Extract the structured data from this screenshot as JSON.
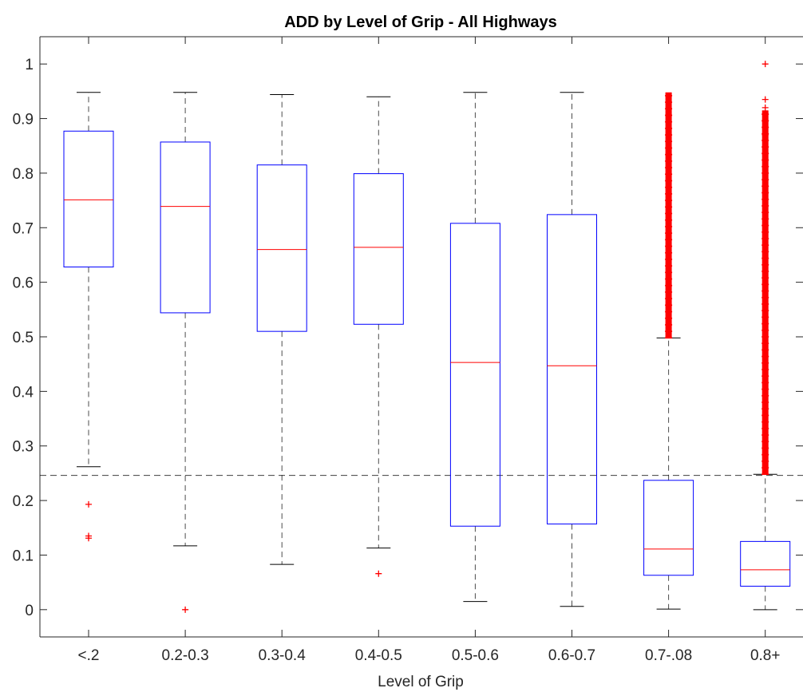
{
  "chart_data": {
    "type": "box",
    "title": "ADD by Level of Grip - All Highways",
    "xlabel": "Level of Grip",
    "ylabel": "",
    "ylim": [
      -0.05,
      1.05
    ],
    "yticks": [
      "0",
      "0.1",
      "0.2",
      "0.3",
      "0.4",
      "0.5",
      "0.6",
      "0.7",
      "0.8",
      "0.9",
      "1"
    ],
    "categories": [
      "<.2",
      "0.2-0.3",
      "0.3-0.4",
      "0.4-0.5",
      "0.5-0.6",
      "0.6-0.7",
      "0.7-.08",
      "0.8+"
    ],
    "boxes": [
      {
        "lower_whisker": 0.262,
        "q1": 0.628,
        "median": 0.751,
        "q3": 0.877,
        "upper_whisker": 0.948,
        "outliers": [
          0.193,
          0.135,
          0.131
        ]
      },
      {
        "lower_whisker": 0.117,
        "q1": 0.544,
        "median": 0.739,
        "q3": 0.857,
        "upper_whisker": 0.948,
        "outliers": [
          0.0
        ]
      },
      {
        "lower_whisker": 0.083,
        "q1": 0.51,
        "median": 0.66,
        "q3": 0.815,
        "upper_whisker": 0.944,
        "outliers": []
      },
      {
        "lower_whisker": 0.113,
        "q1": 0.523,
        "median": 0.664,
        "q3": 0.799,
        "upper_whisker": 0.94,
        "outliers": [
          0.066
        ]
      },
      {
        "lower_whisker": 0.015,
        "q1": 0.153,
        "median": 0.453,
        "q3": 0.708,
        "upper_whisker": 0.948,
        "outliers": []
      },
      {
        "lower_whisker": 0.006,
        "q1": 0.157,
        "median": 0.447,
        "q3": 0.724,
        "upper_whisker": 0.948,
        "outliers": []
      },
      {
        "lower_whisker": 0.001,
        "q1": 0.063,
        "median": 0.111,
        "q3": 0.237,
        "upper_whisker": 0.498,
        "outliers_range": [
          0.498,
          0.948
        ]
      },
      {
        "lower_whisker": 0.0,
        "q1": 0.043,
        "median": 0.073,
        "q3": 0.125,
        "upper_whisker": 0.248,
        "outliers_range": [
          0.248,
          0.915
        ],
        "outliers": [
          0.935,
          0.92,
          0.895,
          0.87,
          1.0
        ]
      }
    ],
    "reference_line": 0.246,
    "grid": false,
    "colors": {
      "box": "#0000ff",
      "median": "#ff0000",
      "whisker": "#000000",
      "outlier": "#ff0000",
      "reference": "#000000"
    }
  }
}
